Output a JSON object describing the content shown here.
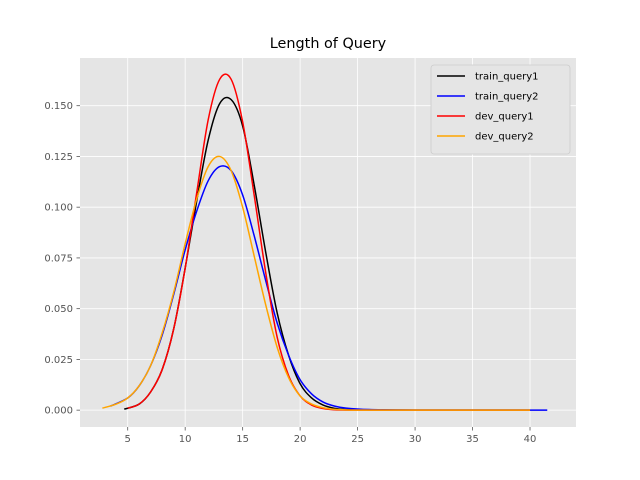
{
  "chart_data": {
    "type": "line",
    "title": "Length of Query",
    "xlabel": "",
    "ylabel": "",
    "xlim": [
      0.85,
      44.0
    ],
    "ylim": [
      -0.0083,
      0.1735
    ],
    "x_ticks": [
      5,
      10,
      15,
      20,
      25,
      30,
      35,
      40
    ],
    "y_ticks": [
      0.0,
      0.025,
      0.05,
      0.075,
      0.1,
      0.125,
      0.15
    ],
    "x_tick_labels": [
      "5",
      "10",
      "15",
      "20",
      "25",
      "30",
      "35",
      "40"
    ],
    "y_tick_labels": [
      "0.000",
      "0.025",
      "0.050",
      "0.075",
      "0.100",
      "0.125",
      "0.150"
    ],
    "grid": true,
    "legend_position": "upper right",
    "series": [
      {
        "name": "train_query1",
        "color": "#000000",
        "x": [
          4.7,
          6,
          7,
          8,
          9,
          10,
          11,
          12,
          13,
          14,
          15,
          16,
          17,
          18,
          19,
          20,
          21,
          22,
          23,
          24,
          26,
          30,
          35,
          40
        ],
        "y": [
          0.0005,
          0.003,
          0.009,
          0.02,
          0.04,
          0.07,
          0.103,
          0.133,
          0.151,
          0.153,
          0.14,
          0.111,
          0.078,
          0.048,
          0.027,
          0.013,
          0.006,
          0.0025,
          0.0009,
          0.0003,
          0.0001,
          0.0,
          0.0,
          0.0
        ]
      },
      {
        "name": "train_query2",
        "color": "#0000ff",
        "x": [
          3.5,
          5,
          6,
          7,
          8,
          9,
          10,
          11,
          12,
          13,
          14,
          15,
          16,
          17,
          18,
          19,
          20,
          21,
          22,
          23,
          24,
          26,
          30,
          35,
          41.5
        ],
        "y": [
          0.002,
          0.006,
          0.012,
          0.022,
          0.037,
          0.057,
          0.079,
          0.098,
          0.113,
          0.12,
          0.118,
          0.106,
          0.086,
          0.064,
          0.043,
          0.027,
          0.015,
          0.008,
          0.004,
          0.002,
          0.001,
          0.0003,
          0.0,
          0.0,
          0.0
        ]
      },
      {
        "name": "dev_query1",
        "color": "#ff0000",
        "x": [
          5,
          6,
          7,
          8,
          9,
          10,
          11,
          12,
          13,
          14,
          15,
          16,
          17,
          18,
          19,
          20,
          21,
          22,
          23,
          25,
          30,
          35,
          40
        ],
        "y": [
          0.001,
          0.003,
          0.009,
          0.02,
          0.04,
          0.07,
          0.107,
          0.143,
          0.163,
          0.163,
          0.142,
          0.106,
          0.068,
          0.036,
          0.017,
          0.007,
          0.0025,
          0.0008,
          0.0002,
          0.0,
          0.0,
          0.0,
          0.0
        ]
      },
      {
        "name": "dev_query2",
        "color": "#ffa500",
        "x": [
          2.8,
          4,
          5,
          6,
          7,
          8,
          9,
          10,
          11,
          12,
          13,
          14,
          15,
          16,
          17,
          18,
          19,
          20,
          21,
          22,
          23,
          25,
          30,
          35,
          40
        ],
        "y": [
          0.001,
          0.003,
          0.006,
          0.012,
          0.022,
          0.038,
          0.058,
          0.082,
          0.104,
          0.12,
          0.125,
          0.118,
          0.1,
          0.076,
          0.052,
          0.031,
          0.016,
          0.007,
          0.003,
          0.0012,
          0.0004,
          0.0,
          0.0,
          0.0,
          0.0
        ]
      }
    ]
  },
  "colors": {
    "plot_background": "#e5e5e5",
    "grid": "#ffffff",
    "tick": "#555555",
    "legend_background": "#e5e5e5",
    "legend_border": "#cccccc"
  }
}
